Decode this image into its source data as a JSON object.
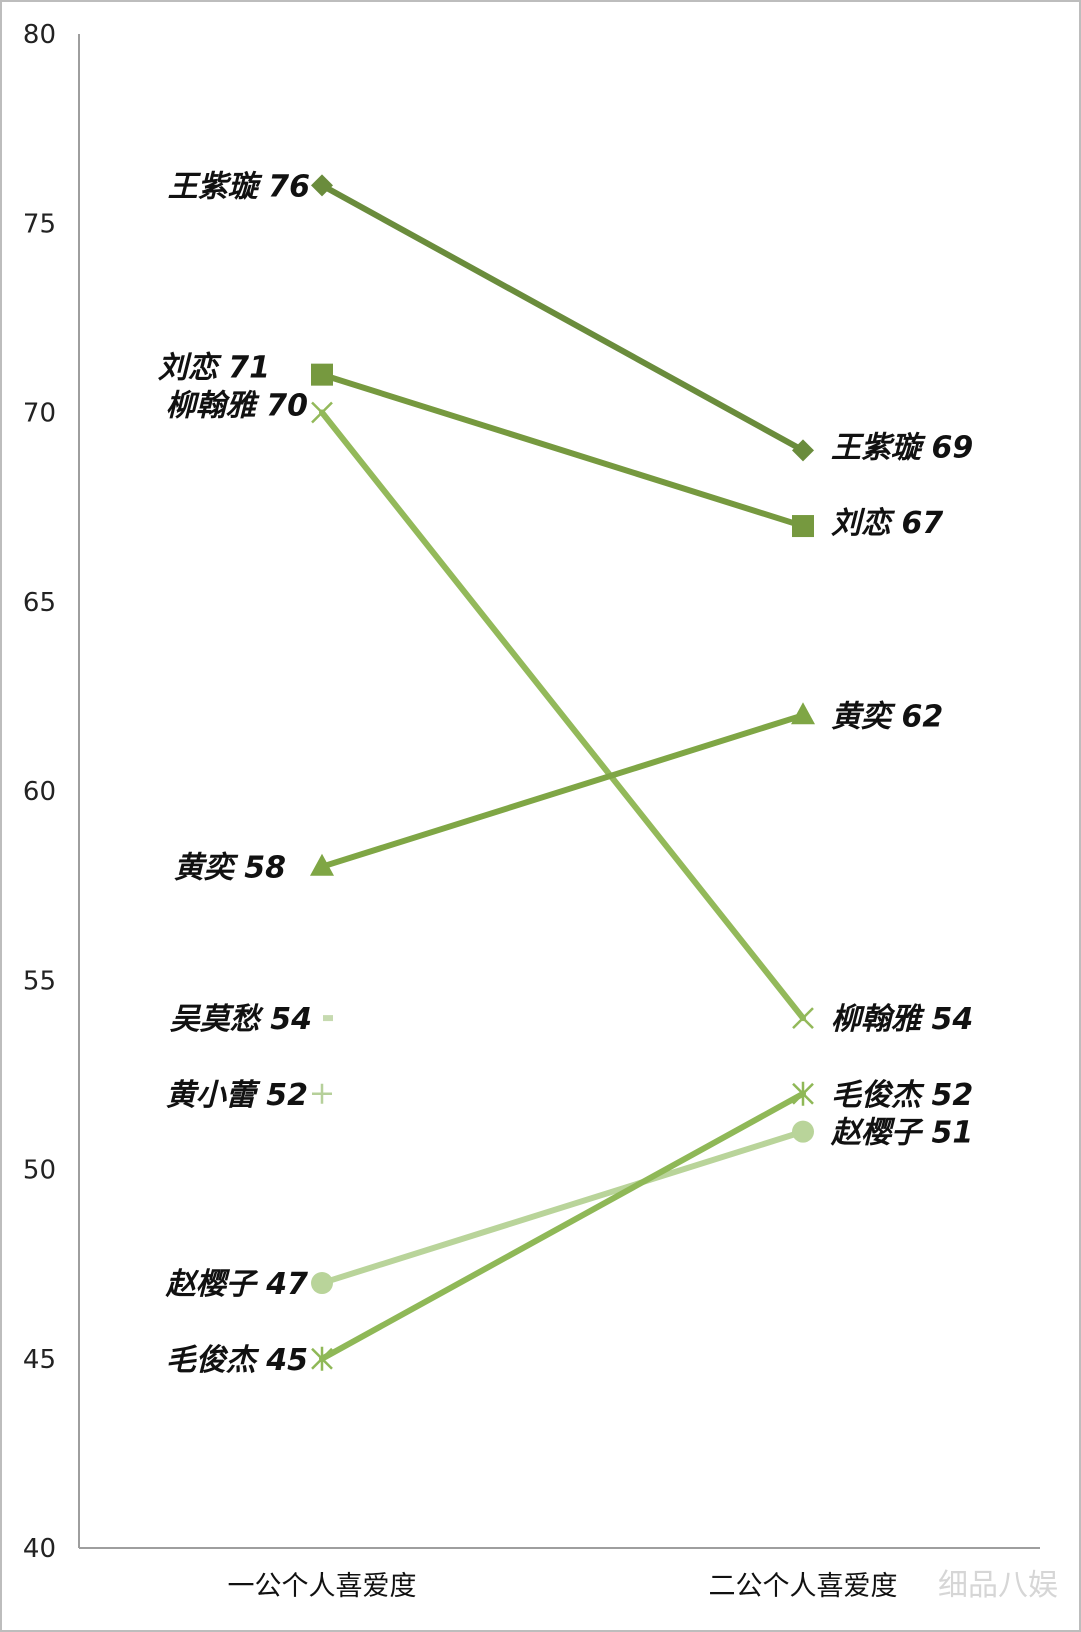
{
  "chart_data": {
    "type": "line",
    "categories": [
      "一公个人喜爱度",
      "二公个人喜爱度"
    ],
    "ylim": [
      40,
      80
    ],
    "yticks": [
      "40",
      "45",
      "50",
      "55",
      "60",
      "65",
      "70",
      "75",
      "80"
    ],
    "grid": false,
    "legend": "none",
    "series": [
      {
        "name": "王紫璇",
        "values": [
          76,
          69
        ],
        "color": "#6a8c3c",
        "marker": "diamond",
        "labels": [
          "王紫璇 76",
          "王紫璇 69"
        ]
      },
      {
        "name": "刘恋",
        "values": [
          71,
          67
        ],
        "color": "#76993f",
        "marker": "square",
        "labels": [
          "刘恋 71",
          "刘恋 67"
        ]
      },
      {
        "name": "柳翰雅",
        "values": [
          70,
          54
        ],
        "color": "#93b95a",
        "marker": "x",
        "labels": [
          "柳翰雅 70",
          "柳翰雅 54"
        ]
      },
      {
        "name": "黄奕",
        "values": [
          58,
          62
        ],
        "color": "#7fa645",
        "marker": "triangle",
        "labels": [
          "黄奕 58",
          "黄奕 62"
        ]
      },
      {
        "name": "吴莫愁",
        "values": [
          54,
          null
        ],
        "color": "#c6dab0",
        "marker": "dash",
        "labels": [
          "吴莫愁 54",
          ""
        ]
      },
      {
        "name": "黄小蕾",
        "values": [
          52,
          null
        ],
        "color": "#b6d09a",
        "marker": "plus",
        "labels": [
          "黄小蕾 52",
          ""
        ]
      },
      {
        "name": "赵樱子",
        "values": [
          47,
          51
        ],
        "color": "#b9d49a",
        "marker": "circle",
        "labels": [
          "赵樱子 47",
          "赵樱子 51"
        ]
      },
      {
        "name": "毛俊杰",
        "values": [
          45,
          52
        ],
        "color": "#8fb857",
        "marker": "star",
        "labels": [
          "毛俊杰 45",
          "毛俊杰 52"
        ]
      }
    ]
  },
  "watermark": "细品八娱"
}
